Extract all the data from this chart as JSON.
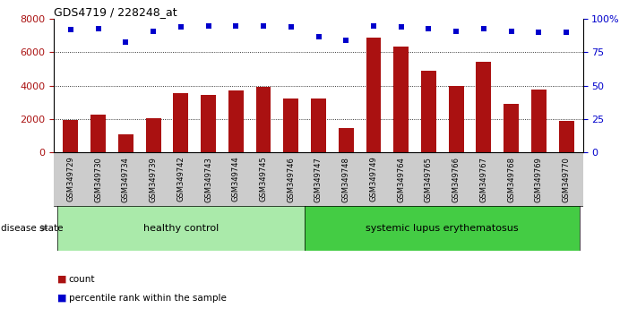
{
  "title": "GDS4719 / 228248_at",
  "samples": [
    "GSM349729",
    "GSM349730",
    "GSM349734",
    "GSM349739",
    "GSM349742",
    "GSM349743",
    "GSM349744",
    "GSM349745",
    "GSM349746",
    "GSM349747",
    "GSM349748",
    "GSM349749",
    "GSM349764",
    "GSM349765",
    "GSM349766",
    "GSM349767",
    "GSM349768",
    "GSM349769",
    "GSM349770"
  ],
  "counts": [
    1950,
    2250,
    1050,
    2050,
    3550,
    3450,
    3700,
    3900,
    3200,
    3200,
    1450,
    6900,
    6350,
    4900,
    4000,
    5450,
    2900,
    3750,
    1900
  ],
  "percentile_ranks": [
    92,
    93,
    83,
    91,
    94,
    95,
    95,
    95,
    94,
    87,
    84,
    95,
    94,
    93,
    91,
    93,
    91,
    90,
    90
  ],
  "healthy_control_count": 9,
  "bar_color": "#AA1111",
  "percentile_color": "#0000CC",
  "ylim_left": [
    0,
    8000
  ],
  "ylim_right": [
    0,
    100
  ],
  "yticks_left": [
    0,
    2000,
    4000,
    6000,
    8000
  ],
  "yticks_right": [
    0,
    25,
    50,
    75,
    100
  ],
  "ytick_labels_right": [
    "0",
    "25",
    "50",
    "75",
    "100%"
  ],
  "grid_values": [
    2000,
    4000,
    6000
  ],
  "healthy_color": "#AAEAAA",
  "lupus_color": "#44CC44",
  "label_healthy": "healthy control",
  "label_lupus": "systemic lupus erythematosus",
  "disease_state_label": "disease state",
  "legend_count_label": "count",
  "legend_percentile_label": "percentile rank within the sample",
  "tick_bg_color": "#CCCCCC"
}
